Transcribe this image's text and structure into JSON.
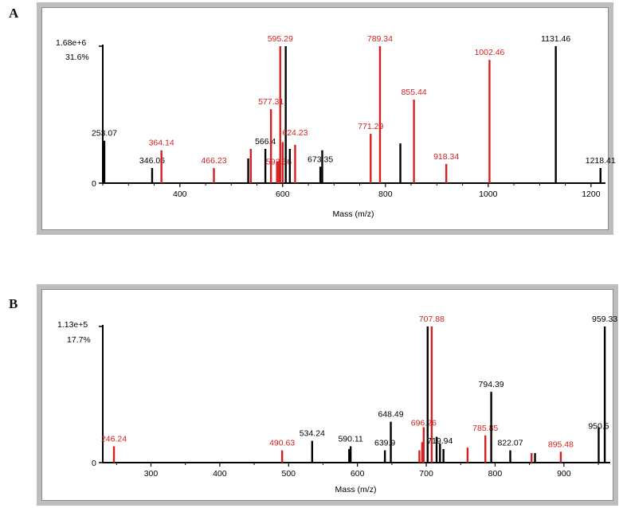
{
  "colors": {
    "black": "#000000",
    "red": "#d42020",
    "frame": "#bdbdbd"
  },
  "panels": [
    {
      "letter": "A"
    },
    {
      "letter": "B"
    }
  ],
  "chart_data": [
    {
      "type": "bar",
      "panel": "A",
      "xlabel": "Mass (m/z)",
      "xlim": [
        250,
        1225
      ],
      "xticks": [
        400,
        600,
        800,
        1000,
        1200
      ],
      "ylabel_max": "1.68e+6",
      "ylabel_pct": "31.6%",
      "grid": false,
      "peaks": [
        {
          "x": 253.07,
          "y": 0.31,
          "color": "black",
          "label": "253.07"
        },
        {
          "x": 346.06,
          "y": 0.11,
          "color": "black",
          "label": "346.06"
        },
        {
          "x": 364.14,
          "y": 0.24,
          "color": "red",
          "label": "364.14"
        },
        {
          "x": 466.23,
          "y": 0.11,
          "color": "red",
          "label": "466.23"
        },
        {
          "x": 533,
          "y": 0.18,
          "color": "black",
          "label": ""
        },
        {
          "x": 538,
          "y": 0.25,
          "color": "red",
          "label": ""
        },
        {
          "x": 566.4,
          "y": 0.25,
          "color": "black",
          "label": "566.4"
        },
        {
          "x": 577.31,
          "y": 0.54,
          "color": "red",
          "label": "577.31"
        },
        {
          "x": 589,
          "y": 0.16,
          "color": "red",
          "label": ""
        },
        {
          "x": 592.56,
          "y": 0.16,
          "color": "red",
          "label": "592.56"
        },
        {
          "x": 595.29,
          "y": 1.0,
          "color": "red",
          "label": "595.29"
        },
        {
          "x": 600,
          "y": 0.3,
          "color": "red",
          "label": ""
        },
        {
          "x": 606,
          "y": 1.0,
          "color": "black",
          "label": ""
        },
        {
          "x": 614,
          "y": 0.25,
          "color": "black",
          "label": ""
        },
        {
          "x": 624.23,
          "y": 0.28,
          "color": "red",
          "label": "624.23"
        },
        {
          "x": 673.35,
          "y": 0.12,
          "color": "black",
          "label": "673.35"
        },
        {
          "x": 677,
          "y": 0.24,
          "color": "black",
          "label": ""
        },
        {
          "x": 771.29,
          "y": 0.36,
          "color": "red",
          "label": "771.29"
        },
        {
          "x": 789.34,
          "y": 1.0,
          "color": "red",
          "label": "789.34"
        },
        {
          "x": 829,
          "y": 0.29,
          "color": "black",
          "label": ""
        },
        {
          "x": 855.44,
          "y": 0.61,
          "color": "red",
          "label": "855.44"
        },
        {
          "x": 918.34,
          "y": 0.14,
          "color": "red",
          "label": "918.34"
        },
        {
          "x": 1002.46,
          "y": 0.9,
          "color": "red",
          "label": "1002.46"
        },
        {
          "x": 1131.46,
          "y": 1.0,
          "color": "black",
          "label": "1131.46"
        },
        {
          "x": 1218.41,
          "y": 0.11,
          "color": "black",
          "label": "1218.41"
        }
      ]
    },
    {
      "type": "bar",
      "panel": "B",
      "xlabel": "Mass (m/z)",
      "xlim": [
        230,
        965
      ],
      "xticks": [
        300,
        400,
        500,
        600,
        700,
        800,
        900
      ],
      "ylabel_max": "1.13e+5",
      "ylabel_pct": "17.7%",
      "grid": false,
      "peaks": [
        {
          "x": 246.24,
          "y": 0.12,
          "color": "red",
          "label": "246.24"
        },
        {
          "x": 490.63,
          "y": 0.09,
          "color": "red",
          "label": "490.63"
        },
        {
          "x": 534.24,
          "y": 0.16,
          "color": "black",
          "label": "534.24"
        },
        {
          "x": 588,
          "y": 0.1,
          "color": "black",
          "label": ""
        },
        {
          "x": 590.11,
          "y": 0.12,
          "color": "black",
          "label": "590.11"
        },
        {
          "x": 639.9,
          "y": 0.09,
          "color": "black",
          "label": "639.9"
        },
        {
          "x": 648.49,
          "y": 0.3,
          "color": "black",
          "label": "648.49"
        },
        {
          "x": 690,
          "y": 0.09,
          "color": "red",
          "label": ""
        },
        {
          "x": 694,
          "y": 0.15,
          "color": "red",
          "label": ""
        },
        {
          "x": 696.26,
          "y": 0.26,
          "color": "red",
          "label": "696.26"
        },
        {
          "x": 702,
          "y": 1.0,
          "color": "black",
          "label": ""
        },
        {
          "x": 707.88,
          "y": 1.0,
          "color": "red",
          "label": "707.88"
        },
        {
          "x": 715,
          "y": 0.19,
          "color": "black",
          "label": ""
        },
        {
          "x": 719.94,
          "y": 0.14,
          "color": "black",
          "label": "719.94"
        },
        {
          "x": 725,
          "y": 0.1,
          "color": "black",
          "label": ""
        },
        {
          "x": 760,
          "y": 0.11,
          "color": "red",
          "label": ""
        },
        {
          "x": 785.85,
          "y": 0.2,
          "color": "red",
          "label": "785.85"
        },
        {
          "x": 794.39,
          "y": 0.52,
          "color": "black",
          "label": "794.39"
        },
        {
          "x": 822.07,
          "y": 0.09,
          "color": "black",
          "label": "822.07"
        },
        {
          "x": 853,
          "y": 0.07,
          "color": "red",
          "label": ""
        },
        {
          "x": 858,
          "y": 0.07,
          "color": "black",
          "label": ""
        },
        {
          "x": 895.48,
          "y": 0.08,
          "color": "red",
          "label": "895.48"
        },
        {
          "x": 950.5,
          "y": 0.26,
          "color": "black",
          "label": "950.5"
        },
        {
          "x": 959.33,
          "y": 1.0,
          "color": "black",
          "label": "959.33"
        }
      ]
    }
  ]
}
